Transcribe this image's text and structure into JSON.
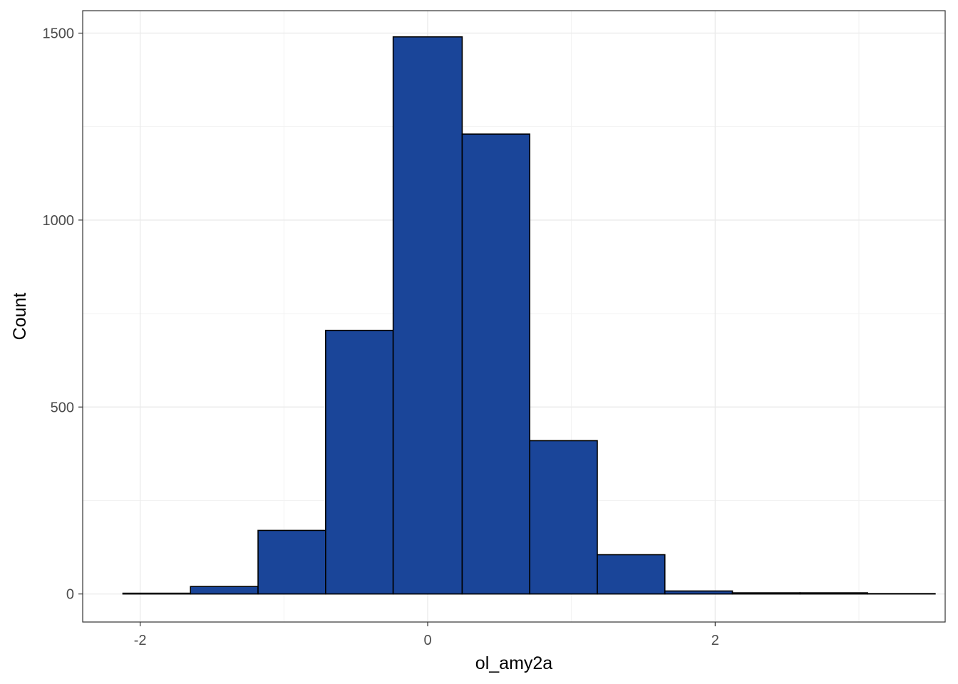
{
  "chart_data": {
    "type": "bar",
    "subtype": "histogram",
    "xlabel": "ol_amy2a",
    "ylabel": "Count",
    "xlim": [
      -2.4,
      3.6
    ],
    "ylim": [
      -75,
      1560
    ],
    "x_ticks": [
      -2,
      0,
      2
    ],
    "x_tick_labels": [
      "-2",
      "0",
      "2"
    ],
    "y_ticks": [
      0,
      500,
      1000,
      1500
    ],
    "y_tick_labels": [
      "0",
      "500",
      "1000",
      "1500"
    ],
    "grid": true,
    "fill_color": "#1a4599",
    "border_color": "#000000",
    "bins": [
      {
        "x0": -2.12,
        "x1": -1.65,
        "count": 2
      },
      {
        "x0": -1.65,
        "x1": -1.18,
        "count": 20
      },
      {
        "x0": -1.18,
        "x1": -0.71,
        "count": 170
      },
      {
        "x0": -0.71,
        "x1": -0.24,
        "count": 705
      },
      {
        "x0": -0.24,
        "x1": 0.24,
        "count": 1490
      },
      {
        "x0": 0.24,
        "x1": 0.71,
        "count": 1230
      },
      {
        "x0": 0.71,
        "x1": 1.18,
        "count": 410
      },
      {
        "x0": 1.18,
        "x1": 1.65,
        "count": 105
      },
      {
        "x0": 1.65,
        "x1": 2.12,
        "count": 8
      },
      {
        "x0": 2.12,
        "x1": 2.59,
        "count": 3
      },
      {
        "x0": 2.59,
        "x1": 3.06,
        "count": 3
      },
      {
        "x0": 3.06,
        "x1": 3.53,
        "count": 1
      }
    ]
  }
}
